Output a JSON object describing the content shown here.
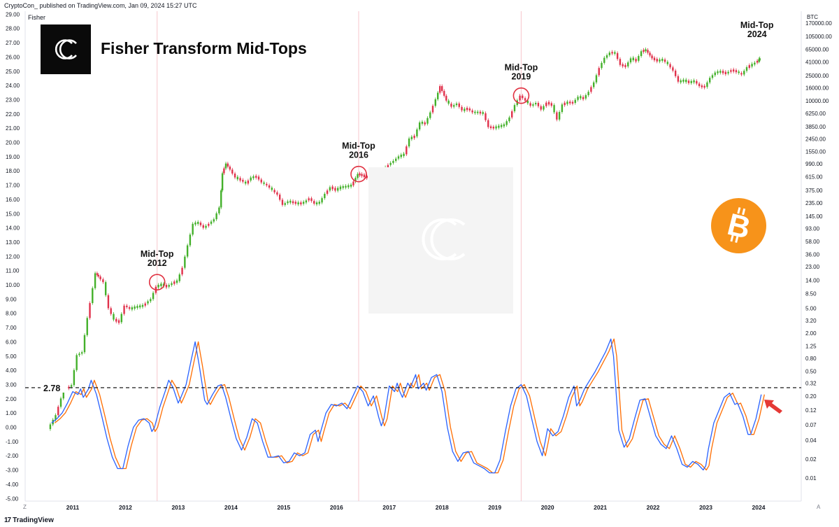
{
  "header": {
    "text": "CryptoCon_ published on TradingView.com, Jan 09, 2024 15:27 UTC",
    "pane_name": "Fisher",
    "currency": "BTC"
  },
  "title": "Fisher Transform Mid-Tops",
  "footer": {
    "brand": "TradingView",
    "axis_left": "Z",
    "axis_right": "A"
  },
  "colors": {
    "up_candle": "#26a69a",
    "up_candle_green": "#43b02a",
    "down_candle": "#e0314b",
    "fisher_line": "#2962ff",
    "trigger_line": "#ff6d00",
    "threshold_line": "#000000",
    "circle": "#e03040",
    "btc_orange": "#f7931a",
    "arrow": "#e53935"
  },
  "icons": [
    "cryptocon-logo-icon",
    "bitcoin-icon",
    "tradingview-logo-icon"
  ],
  "chart_data": {
    "type": "line",
    "title": "Fisher Transform Mid-Tops",
    "x_ticks": [
      "2011",
      "2012",
      "2013",
      "2014",
      "2015",
      "2016",
      "2017",
      "2018",
      "2019",
      "2020",
      "2021",
      "2022",
      "2023",
      "2024"
    ],
    "left_axis_ticks": [
      "29.00",
      "28.00",
      "27.00",
      "26.00",
      "25.00",
      "24.00",
      "23.00",
      "22.00",
      "21.00",
      "20.00",
      "19.00",
      "18.00",
      "17.00",
      "16.00",
      "15.00",
      "14.00",
      "13.00",
      "12.00",
      "11.00",
      "10.00",
      "9.00",
      "8.00",
      "7.00",
      "6.00",
      "5.00",
      "4.00",
      "3.00",
      "2.00",
      "1.00",
      "0.00",
      "-1.00",
      "-2.00",
      "-3.00",
      "-4.00",
      "-5.00"
    ],
    "right_axis_ticks": [
      "105000.00",
      "65000.00",
      "41000.00",
      "25000.00",
      "16000.00",
      "10000.00",
      "6250.00",
      "3850.00",
      "2450.00",
      "1550.00",
      "990.00",
      "615.00",
      "375.00",
      "235.00",
      "145.00",
      "93.00",
      "58.00",
      "36.00",
      "23.00",
      "14.00",
      "8.50",
      "5.00",
      "3.20",
      "2.00",
      "1.25",
      "0.80",
      "0.50",
      "0.32",
      "0.20",
      "0.12",
      "0.07",
      "0.04",
      "0.02",
      "0.01"
    ],
    "right_axis_top_partial": "170000.00",
    "threshold": {
      "value": 2.78,
      "label": "2.78"
    },
    "annotations": [
      {
        "line1": "Mid-Top",
        "line2": "2012",
        "x": 2012.6,
        "price": 13
      },
      {
        "line1": "Mid-Top",
        "line2": "2016",
        "x": 2016.42,
        "price": 680
      },
      {
        "line1": "Mid-Top",
        "line2": "2019",
        "x": 2019.5,
        "price": 12000
      },
      {
        "line1": "Mid-Top",
        "line2": "2024",
        "x": null,
        "price": null
      }
    ],
    "vertical_markers": [
      2012.6,
      2016.42,
      2019.5
    ],
    "price_series": {
      "name": "BTC",
      "scale": "log",
      "points": [
        [
          2010.55,
          0.06
        ],
        [
          2010.7,
          0.1
        ],
        [
          2010.85,
          0.25
        ],
        [
          2011.0,
          0.3
        ],
        [
          2011.1,
          0.9
        ],
        [
          2011.2,
          1.0
        ],
        [
          2011.3,
          3.5
        ],
        [
          2011.45,
          18
        ],
        [
          2011.5,
          16
        ],
        [
          2011.6,
          13
        ],
        [
          2011.7,
          5
        ],
        [
          2011.8,
          3.3
        ],
        [
          2011.9,
          3.0
        ],
        [
          2012.0,
          5.5
        ],
        [
          2012.1,
          4.9
        ],
        [
          2012.2,
          5.2
        ],
        [
          2012.35,
          5.5
        ],
        [
          2012.5,
          7.0
        ],
        [
          2012.6,
          11
        ],
        [
          2012.7,
          12
        ],
        [
          2012.8,
          11
        ],
        [
          2012.9,
          12.5
        ],
        [
          2013.0,
          13.5
        ],
        [
          2013.1,
          22
        ],
        [
          2013.2,
          50
        ],
        [
          2013.3,
          110
        ],
        [
          2013.4,
          115
        ],
        [
          2013.5,
          95
        ],
        [
          2013.6,
          110
        ],
        [
          2013.7,
          130
        ],
        [
          2013.8,
          200
        ],
        [
          2013.85,
          700
        ],
        [
          2013.92,
          1000
        ],
        [
          2014.0,
          800
        ],
        [
          2014.1,
          600
        ],
        [
          2014.2,
          550
        ],
        [
          2014.3,
          480
        ],
        [
          2014.4,
          600
        ],
        [
          2014.5,
          620
        ],
        [
          2014.6,
          500
        ],
        [
          2014.7,
          450
        ],
        [
          2014.8,
          380
        ],
        [
          2014.9,
          320
        ],
        [
          2015.0,
          220
        ],
        [
          2015.1,
          250
        ],
        [
          2015.2,
          240
        ],
        [
          2015.3,
          230
        ],
        [
          2015.4,
          240
        ],
        [
          2015.5,
          280
        ],
        [
          2015.6,
          230
        ],
        [
          2015.7,
          240
        ],
        [
          2015.8,
          330
        ],
        [
          2015.9,
          420
        ],
        [
          2016.0,
          380
        ],
        [
          2016.1,
          420
        ],
        [
          2016.2,
          430
        ],
        [
          2016.3,
          450
        ],
        [
          2016.42,
          680
        ],
        [
          2016.5,
          650
        ],
        [
          2016.6,
          600
        ],
        [
          2016.7,
          620
        ],
        [
          2016.8,
          720
        ],
        [
          2016.9,
          800
        ],
        [
          2017.0,
          950
        ],
        [
          2017.1,
          1100
        ],
        [
          2017.2,
          1300
        ],
        [
          2017.3,
          1400
        ],
        [
          2017.4,
          2500
        ],
        [
          2017.5,
          2700
        ],
        [
          2017.6,
          4500
        ],
        [
          2017.7,
          4300
        ],
        [
          2017.8,
          6500
        ],
        [
          2017.9,
          10500
        ],
        [
          2017.98,
          17000
        ],
        [
          2018.1,
          10000
        ],
        [
          2018.2,
          8000
        ],
        [
          2018.3,
          9000
        ],
        [
          2018.4,
          7000
        ],
        [
          2018.5,
          7500
        ],
        [
          2018.6,
          6500
        ],
        [
          2018.7,
          6500
        ],
        [
          2018.8,
          6300
        ],
        [
          2018.9,
          3800
        ],
        [
          2019.0,
          3700
        ],
        [
          2019.1,
          3900
        ],
        [
          2019.2,
          4100
        ],
        [
          2019.3,
          5400
        ],
        [
          2019.4,
          8500
        ],
        [
          2019.5,
          12000
        ],
        [
          2019.6,
          10000
        ],
        [
          2019.7,
          8300
        ],
        [
          2019.8,
          9200
        ],
        [
          2019.9,
          7200
        ],
        [
          2020.0,
          9300
        ],
        [
          2020.1,
          8500
        ],
        [
          2020.2,
          5000
        ],
        [
          2020.3,
          8700
        ],
        [
          2020.4,
          9400
        ],
        [
          2020.5,
          9200
        ],
        [
          2020.6,
          11500
        ],
        [
          2020.7,
          10800
        ],
        [
          2020.8,
          13800
        ],
        [
          2020.9,
          19500
        ],
        [
          2021.0,
          33000
        ],
        [
          2021.1,
          48000
        ],
        [
          2021.2,
          58000
        ],
        [
          2021.3,
          57000
        ],
        [
          2021.4,
          37000
        ],
        [
          2021.5,
          35000
        ],
        [
          2021.6,
          47000
        ],
        [
          2021.7,
          43000
        ],
        [
          2021.8,
          61000
        ],
        [
          2021.88,
          64000
        ],
        [
          2022.0,
          47000
        ],
        [
          2022.1,
          43000
        ],
        [
          2022.2,
          45000
        ],
        [
          2022.3,
          38000
        ],
        [
          2022.4,
          30000
        ],
        [
          2022.5,
          20000
        ],
        [
          2022.6,
          21000
        ],
        [
          2022.7,
          19500
        ],
        [
          2022.8,
          20500
        ],
        [
          2022.9,
          17000
        ],
        [
          2023.0,
          16500
        ],
        [
          2023.1,
          23000
        ],
        [
          2023.2,
          28000
        ],
        [
          2023.3,
          29000
        ],
        [
          2023.4,
          27000
        ],
        [
          2023.5,
          30500
        ],
        [
          2023.6,
          29000
        ],
        [
          2023.7,
          26000
        ],
        [
          2023.8,
          34000
        ],
        [
          2023.9,
          37500
        ],
        [
          2024.0,
          43000
        ],
        [
          2024.03,
          46000
        ]
      ]
    },
    "fisher_series": {
      "name": "Fisher",
      "points": [
        [
          2010.6,
          0.3
        ],
        [
          2010.7,
          0.6
        ],
        [
          2010.8,
          1.0
        ],
        [
          2010.9,
          1.7
        ],
        [
          2011.0,
          2.5
        ],
        [
          2011.1,
          2.3
        ],
        [
          2011.15,
          2.7
        ],
        [
          2011.2,
          2.1
        ],
        [
          2011.3,
          2.7
        ],
        [
          2011.35,
          3.3
        ],
        [
          2011.45,
          2.3
        ],
        [
          2011.55,
          0.8
        ],
        [
          2011.65,
          -0.8
        ],
        [
          2011.75,
          -2.1
        ],
        [
          2011.85,
          -2.9
        ],
        [
          2011.95,
          -2.9
        ],
        [
          2012.05,
          -1.3
        ],
        [
          2012.15,
          0.0
        ],
        [
          2012.25,
          0.5
        ],
        [
          2012.35,
          0.6
        ],
        [
          2012.45,
          0.3
        ],
        [
          2012.5,
          -0.3
        ],
        [
          2012.55,
          0.0
        ],
        [
          2012.65,
          1.4
        ],
        [
          2012.75,
          2.5
        ],
        [
          2012.82,
          3.3
        ],
        [
          2012.9,
          2.8
        ],
        [
          2013.0,
          1.7
        ],
        [
          2013.05,
          2.1
        ],
        [
          2013.15,
          3.0
        ],
        [
          2013.25,
          4.8
        ],
        [
          2013.32,
          6.0
        ],
        [
          2013.4,
          4.3
        ],
        [
          2013.5,
          1.9
        ],
        [
          2013.55,
          1.6
        ],
        [
          2013.65,
          2.3
        ],
        [
          2013.75,
          2.9
        ],
        [
          2013.82,
          3.0
        ],
        [
          2013.9,
          2.1
        ],
        [
          2014.0,
          0.6
        ],
        [
          2014.1,
          -0.8
        ],
        [
          2014.2,
          -1.6
        ],
        [
          2014.3,
          -0.7
        ],
        [
          2014.4,
          0.6
        ],
        [
          2014.5,
          0.3
        ],
        [
          2014.6,
          -1.0
        ],
        [
          2014.7,
          -2.1
        ],
        [
          2014.8,
          -2.1
        ],
        [
          2014.9,
          -2.0
        ],
        [
          2015.0,
          -2.5
        ],
        [
          2015.1,
          -2.4
        ],
        [
          2015.2,
          -1.8
        ],
        [
          2015.3,
          -2.0
        ],
        [
          2015.4,
          -1.8
        ],
        [
          2015.5,
          -0.5
        ],
        [
          2015.6,
          -0.2
        ],
        [
          2015.65,
          -1.0
        ],
        [
          2015.7,
          -0.3
        ],
        [
          2015.8,
          1.0
        ],
        [
          2015.9,
          1.6
        ],
        [
          2016.0,
          1.5
        ],
        [
          2016.1,
          1.7
        ],
        [
          2016.2,
          1.3
        ],
        [
          2016.3,
          2.1
        ],
        [
          2016.4,
          2.9
        ],
        [
          2016.5,
          2.5
        ],
        [
          2016.6,
          1.5
        ],
        [
          2016.7,
          2.2
        ],
        [
          2016.8,
          0.7
        ],
        [
          2016.85,
          0.1
        ],
        [
          2016.9,
          0.6
        ],
        [
          2017.0,
          2.9
        ],
        [
          2017.1,
          2.5
        ],
        [
          2017.15,
          3.1
        ],
        [
          2017.2,
          2.5
        ],
        [
          2017.25,
          2.1
        ],
        [
          2017.35,
          3.1
        ],
        [
          2017.4,
          2.8
        ],
        [
          2017.5,
          3.7
        ],
        [
          2017.55,
          2.7
        ],
        [
          2017.65,
          3.1
        ],
        [
          2017.7,
          2.6
        ],
        [
          2017.8,
          3.5
        ],
        [
          2017.9,
          3.7
        ],
        [
          2018.0,
          2.5
        ],
        [
          2018.1,
          0.0
        ],
        [
          2018.2,
          -1.7
        ],
        [
          2018.3,
          -2.4
        ],
        [
          2018.4,
          -1.8
        ],
        [
          2018.5,
          -1.7
        ],
        [
          2018.6,
          -2.5
        ],
        [
          2018.7,
          -2.7
        ],
        [
          2018.8,
          -2.9
        ],
        [
          2018.9,
          -3.2
        ],
        [
          2019.0,
          -3.2
        ],
        [
          2019.1,
          -2.3
        ],
        [
          2019.2,
          -0.3
        ],
        [
          2019.3,
          1.5
        ],
        [
          2019.4,
          2.7
        ],
        [
          2019.5,
          3.0
        ],
        [
          2019.6,
          2.2
        ],
        [
          2019.7,
          0.6
        ],
        [
          2019.8,
          -1.0
        ],
        [
          2019.9,
          -2.0
        ],
        [
          2019.95,
          -1.1
        ],
        [
          2020.0,
          -0.1
        ],
        [
          2020.1,
          -0.6
        ],
        [
          2020.2,
          -0.3
        ],
        [
          2020.3,
          0.8
        ],
        [
          2020.4,
          2.1
        ],
        [
          2020.5,
          2.9
        ],
        [
          2020.55,
          1.5
        ],
        [
          2020.6,
          1.8
        ],
        [
          2020.7,
          2.7
        ],
        [
          2020.8,
          3.3
        ],
        [
          2020.9,
          3.9
        ],
        [
          2021.0,
          4.6
        ],
        [
          2021.1,
          5.3
        ],
        [
          2021.2,
          6.2
        ],
        [
          2021.25,
          5.0
        ],
        [
          2021.3,
          2.4
        ],
        [
          2021.35,
          -0.2
        ],
        [
          2021.45,
          -1.4
        ],
        [
          2021.55,
          -0.8
        ],
        [
          2021.65,
          0.6
        ],
        [
          2021.75,
          1.9
        ],
        [
          2021.85,
          2.0
        ],
        [
          2021.95,
          0.7
        ],
        [
          2022.05,
          -0.6
        ],
        [
          2022.15,
          -1.2
        ],
        [
          2022.25,
          -1.5
        ],
        [
          2022.35,
          -0.6
        ],
        [
          2022.45,
          -1.5
        ],
        [
          2022.55,
          -2.6
        ],
        [
          2022.65,
          -2.8
        ],
        [
          2022.75,
          -2.4
        ],
        [
          2022.85,
          -2.6
        ],
        [
          2022.95,
          -3.0
        ],
        [
          2023.0,
          -2.7
        ],
        [
          2023.05,
          -1.5
        ],
        [
          2023.15,
          0.3
        ],
        [
          2023.25,
          1.2
        ],
        [
          2023.35,
          2.1
        ],
        [
          2023.45,
          2.4
        ],
        [
          2023.55,
          1.6
        ],
        [
          2023.6,
          1.7
        ],
        [
          2023.7,
          0.8
        ],
        [
          2023.8,
          -0.5
        ],
        [
          2023.85,
          -0.5
        ],
        [
          2023.95,
          0.6
        ],
        [
          2024.05,
          2.3
        ]
      ]
    }
  }
}
